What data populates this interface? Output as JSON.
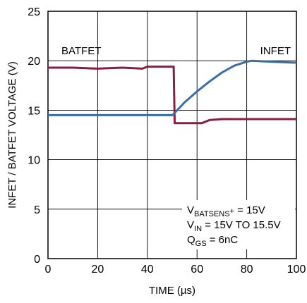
{
  "chart_data": {
    "type": "line",
    "xlabel": "TIME (µs)",
    "ylabel": "INFET / BATFET VOLTAGE (V)",
    "xlim": [
      0,
      100
    ],
    "ylim": [
      0,
      25
    ],
    "x_ticks": [
      "0",
      "20",
      "40",
      "60",
      "80",
      "100"
    ],
    "y_ticks": [
      "0",
      "5",
      "10",
      "15",
      "20",
      "25"
    ],
    "grid": true,
    "series": [
      {
        "name": "BATFET",
        "color": "#8c1c44",
        "x": [
          0,
          10,
          20,
          30,
          38,
          40,
          45,
          50,
          50.6,
          51,
          55,
          60,
          62,
          65,
          70,
          80,
          90,
          100
        ],
        "y": [
          19.3,
          19.3,
          19.2,
          19.3,
          19.2,
          19.4,
          19.4,
          19.4,
          19.4,
          13.7,
          13.7,
          13.7,
          13.7,
          14.0,
          14.1,
          14.1,
          14.1,
          14.1
        ]
      },
      {
        "name": "INFET",
        "color": "#3a6ea5",
        "x": [
          0,
          10,
          20,
          30,
          40,
          50,
          50.5,
          55,
          60,
          65,
          70,
          75,
          80,
          82,
          90,
          100
        ],
        "y": [
          14.5,
          14.5,
          14.5,
          14.5,
          14.5,
          14.5,
          14.6,
          15.8,
          16.9,
          17.9,
          18.8,
          19.5,
          19.9,
          20.0,
          19.9,
          19.8
        ]
      }
    ],
    "labels": {
      "batfet": "BATFET",
      "infet": "INFET"
    },
    "annotations": {
      "line1": {
        "main": "V",
        "sub": "BATSENS",
        "sup": "+",
        "rest": " = 15V"
      },
      "line2": {
        "main": "V",
        "sub": "IN",
        "rest": " = 15V TO 15.5V"
      },
      "line3": {
        "main": "Q",
        "sub": "GS",
        "rest": " = 6nC"
      }
    }
  }
}
